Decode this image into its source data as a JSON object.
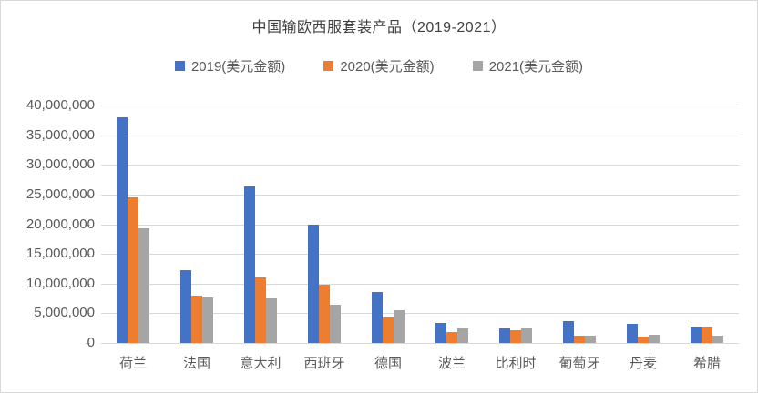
{
  "chart_data": {
    "type": "bar",
    "title": "中国输欧西服套装产品（2019-2021）",
    "categories": [
      "荷兰",
      "法国",
      "意大利",
      "西班牙",
      "德国",
      "波兰",
      "比利时",
      "葡萄牙",
      "丹麦",
      "希腊"
    ],
    "series": [
      {
        "name": "2019(美元金额)",
        "color": "#4472C4",
        "values": [
          38000000,
          12300000,
          26400000,
          20000000,
          8600000,
          3400000,
          2500000,
          3700000,
          3200000,
          2800000
        ]
      },
      {
        "name": "2020(美元金额)",
        "color": "#ED7D31",
        "values": [
          24500000,
          8000000,
          11000000,
          9800000,
          4300000,
          1900000,
          2200000,
          1200000,
          1000000,
          2800000
        ]
      },
      {
        "name": "2021(美元金额)",
        "color": "#A5A5A5",
        "values": [
          19300000,
          7700000,
          7500000,
          6500000,
          5500000,
          2500000,
          2600000,
          1300000,
          1400000,
          1200000
        ]
      }
    ],
    "xlabel": "",
    "ylabel": "",
    "ylim": [
      0,
      40000000
    ],
    "ytick_step": 5000000,
    "ytick_labels": [
      "0",
      "5,000,000",
      "10,000,000",
      "15,000,000",
      "20,000,000",
      "25,000,000",
      "30,000,000",
      "35,000,000",
      "40,000,000"
    ],
    "grid": true,
    "legend_position": "top",
    "colors": {
      "gridline": "#d9d9d9",
      "tick": "#bfbfbf",
      "axis_text": "#595959",
      "title_text": "#404040",
      "background": "#ffffff",
      "border": "#d9d9d9"
    }
  }
}
